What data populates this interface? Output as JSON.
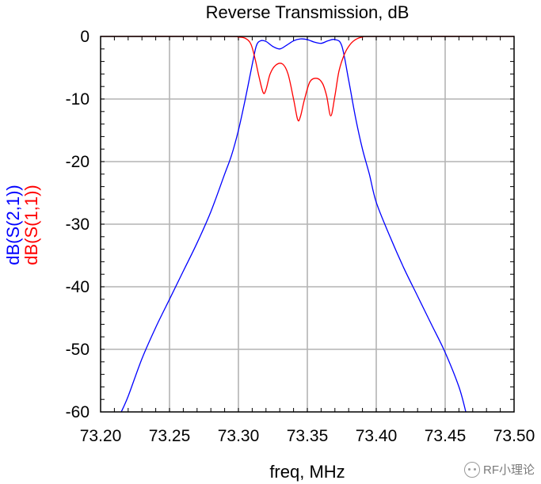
{
  "chart_data": {
    "type": "line",
    "title": "Reverse Transmission, dB",
    "xlabel": "freq, MHz",
    "ylabels": [
      {
        "text": "dB(S(2,1))",
        "color": "#0000ff"
      },
      {
        "text": "dB(S(1,1))",
        "color": "#ff0000"
      }
    ],
    "xlim": [
      73.2,
      73.5
    ],
    "ylim": [
      -60,
      0
    ],
    "xticks": [
      "73.20",
      "73.25",
      "73.30",
      "73.35",
      "73.40",
      "73.45",
      "73.50"
    ],
    "yticks": [
      "0",
      "-10",
      "-20",
      "-30",
      "-40",
      "-50",
      "-60"
    ],
    "grid": true,
    "series": [
      {
        "name": "dB(S(2,1))",
        "color": "#0000ff",
        "x": [
          73.215,
          73.22,
          73.23,
          73.24,
          73.25,
          73.26,
          73.27,
          73.28,
          73.29,
          73.295,
          73.3,
          73.305,
          73.31,
          73.313,
          73.316,
          73.32,
          73.325,
          73.33,
          73.335,
          73.34,
          73.345,
          73.35,
          73.355,
          73.36,
          73.365,
          73.37,
          73.375,
          73.38,
          73.385,
          73.39,
          73.395,
          73.4,
          73.41,
          73.42,
          73.43,
          73.44,
          73.45,
          73.46,
          73.465
        ],
        "y": [
          -60,
          -57.5,
          -51.5,
          -46.5,
          -42,
          -37.5,
          -33,
          -28,
          -22,
          -19,
          -15,
          -10,
          -4.5,
          -1.5,
          -0.7,
          -0.8,
          -1.6,
          -2.0,
          -1.4,
          -0.7,
          -0.4,
          -0.5,
          -0.9,
          -1.1,
          -0.7,
          -0.5,
          -1.5,
          -7,
          -13,
          -18,
          -22,
          -26.5,
          -32,
          -37,
          -41.5,
          -46,
          -50.5,
          -56,
          -60
        ]
      },
      {
        "name": "dB(S(1,1))",
        "color": "#ff0000",
        "x": [
          73.2,
          73.29,
          73.3,
          73.305,
          73.309,
          73.312,
          73.315,
          73.318,
          73.32,
          73.323,
          73.327,
          73.332,
          73.336,
          73.34,
          73.343,
          73.345,
          73.348,
          73.352,
          73.357,
          73.361,
          73.364,
          73.367,
          73.37,
          73.373,
          73.377,
          73.381,
          73.385,
          73.39,
          73.4,
          73.5
        ],
        "y": [
          0,
          0,
          -0.1,
          -0.3,
          -1.2,
          -3.5,
          -6.5,
          -9.0,
          -8.5,
          -6.0,
          -4.6,
          -4.4,
          -6.0,
          -10.0,
          -13.3,
          -12.8,
          -10.0,
          -7.2,
          -6.7,
          -7.5,
          -9.5,
          -12.7,
          -9.5,
          -5.5,
          -2.8,
          -1.3,
          -0.5,
          -0.1,
          0,
          0
        ]
      }
    ]
  },
  "watermark": {
    "icon": "wechat-icon",
    "text": "RF小理论"
  }
}
